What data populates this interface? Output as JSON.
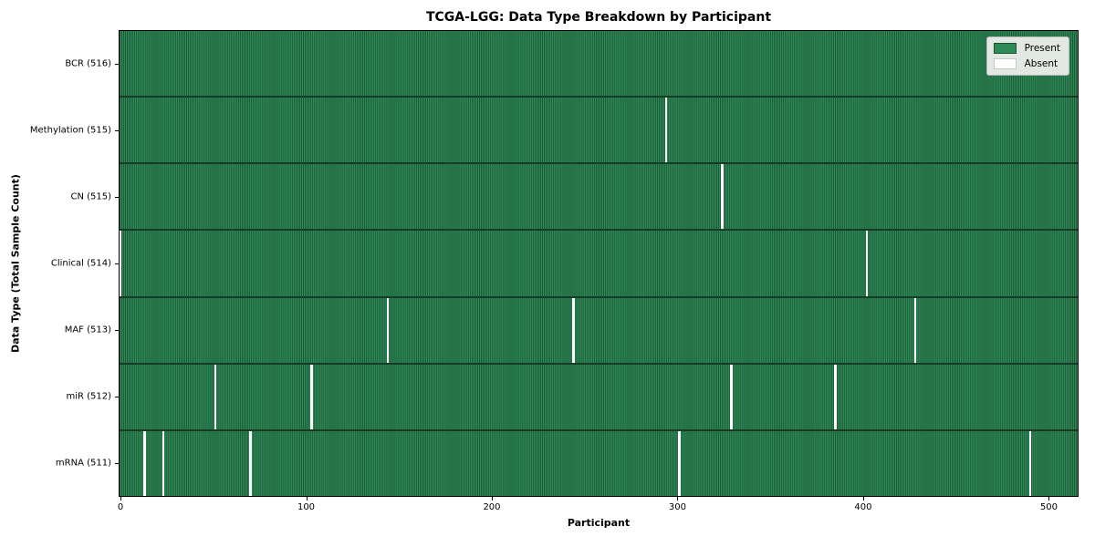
{
  "chart_data": {
    "type": "heatmap",
    "title": "TCGA-LGG: Data Type Breakdown by Participant",
    "xlabel": "Participant",
    "ylabel": "Data Type (Total Sample Count)",
    "n_participants": 516,
    "x_ticks": [
      0,
      100,
      200,
      300,
      400,
      500
    ],
    "xlim": [
      -0.5,
      515.5
    ],
    "grid": false,
    "legend_position": "upper right",
    "legend": [
      {
        "label": "Present",
        "color": "#2e8b57"
      },
      {
        "label": "Absent",
        "color": "#ffffff"
      }
    ],
    "colors": {
      "present": "#2e8b57",
      "present_edge": "#1c5434",
      "row_separator": "#143c27",
      "absent": "#ffffff"
    },
    "rows": [
      {
        "label": "BCR (516)",
        "data_type": "BCR",
        "present_count": 516,
        "absent_participants": []
      },
      {
        "label": "Methylation (515)",
        "data_type": "Methylation",
        "present_count": 515,
        "absent_participants": [
          294
        ]
      },
      {
        "label": "CN (515)",
        "data_type": "CN",
        "present_count": 515,
        "absent_participants": [
          324
        ]
      },
      {
        "label": "Clinical (514)",
        "data_type": "Clinical",
        "present_count": 514,
        "absent_participants": [
          0,
          402
        ]
      },
      {
        "label": "MAF (513)",
        "data_type": "MAF",
        "present_count": 513,
        "absent_participants": [
          144,
          244,
          428
        ]
      },
      {
        "label": "miR (512)",
        "data_type": "miR",
        "present_count": 512,
        "absent_participants": [
          51,
          103,
          329,
          385
        ]
      },
      {
        "label": "mRNA (511)",
        "data_type": "mRNA",
        "present_count": 511,
        "absent_participants": [
          13,
          23,
          70,
          301,
          490
        ]
      }
    ]
  }
}
